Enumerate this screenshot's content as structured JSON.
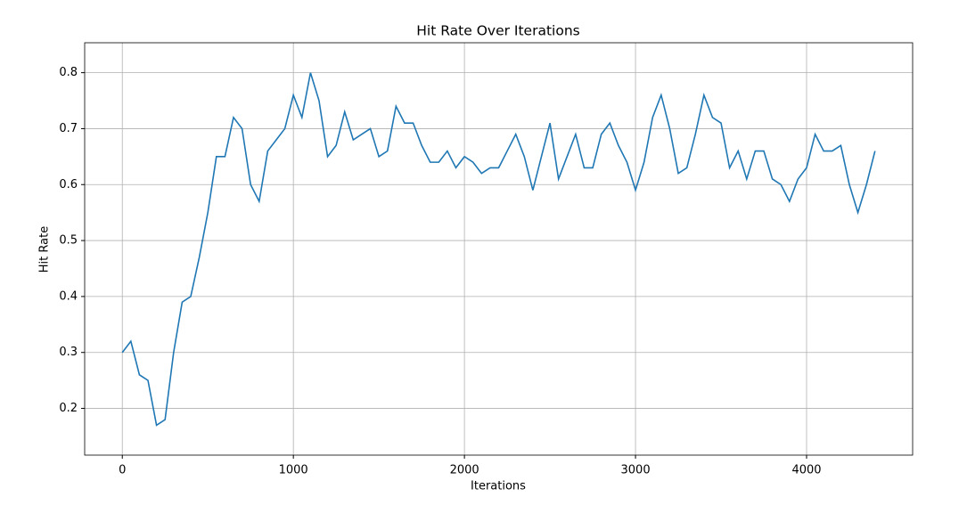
{
  "chart_data": {
    "type": "line",
    "title": "Hit Rate Over Iterations",
    "x_label": "Iterations",
    "y_label": "Hit Rate",
    "x": [
      0,
      50,
      100,
      150,
      200,
      250,
      300,
      350,
      400,
      450,
      500,
      550,
      600,
      650,
      700,
      750,
      800,
      850,
      900,
      950,
      1000,
      1050,
      1100,
      1150,
      1200,
      1250,
      1300,
      1350,
      1400,
      1450,
      1500,
      1550,
      1600,
      1650,
      1700,
      1750,
      1800,
      1850,
      1900,
      1950,
      2000,
      2050,
      2100,
      2150,
      2200,
      2250,
      2300,
      2350,
      2400,
      2450,
      2500,
      2550,
      2600,
      2650,
      2700,
      2750,
      2800,
      2850,
      2900,
      2950,
      3000,
      3050,
      3100,
      3150,
      3200,
      3250,
      3300,
      3350,
      3400,
      3450,
      3500,
      3550,
      3600,
      3650,
      3700,
      3750,
      3800,
      3850,
      3900,
      3950,
      4000,
      4050,
      4100,
      4150,
      4200,
      4250,
      4300,
      4350,
      4400
    ],
    "series": [
      {
        "name": "Hit Rate",
        "color": "#1f77b4",
        "values": [
          0.3,
          0.32,
          0.26,
          0.25,
          0.17,
          0.18,
          0.3,
          0.39,
          0.4,
          0.47,
          0.55,
          0.65,
          0.65,
          0.72,
          0.7,
          0.6,
          0.57,
          0.66,
          0.68,
          0.7,
          0.76,
          0.72,
          0.8,
          0.75,
          0.65,
          0.67,
          0.73,
          0.68,
          0.69,
          0.7,
          0.65,
          0.66,
          0.74,
          0.71,
          0.71,
          0.67,
          0.64,
          0.64,
          0.66,
          0.63,
          0.65,
          0.64,
          0.62,
          0.63,
          0.63,
          0.66,
          0.69,
          0.65,
          0.59,
          0.65,
          0.71,
          0.61,
          0.65,
          0.69,
          0.63,
          0.63,
          0.69,
          0.71,
          0.67,
          0.64,
          0.59,
          0.64,
          0.72,
          0.76,
          0.7,
          0.62,
          0.63,
          0.69,
          0.76,
          0.72,
          0.71,
          0.63,
          0.66,
          0.61,
          0.66,
          0.66,
          0.61,
          0.6,
          0.57,
          0.61,
          0.63,
          0.69,
          0.66,
          0.66,
          0.67,
          0.6,
          0.55,
          0.6,
          0.66
        ]
      }
    ],
    "xlim": [
      -220,
      4620
    ],
    "xticks": [
      0,
      1000,
      2000,
      3000,
      4000
    ],
    "ylim": [
      0.1165,
      0.8535
    ],
    "yticks": [
      0.2,
      0.3,
      0.4,
      0.5,
      0.6,
      0.7,
      0.8
    ],
    "grid": true
  }
}
